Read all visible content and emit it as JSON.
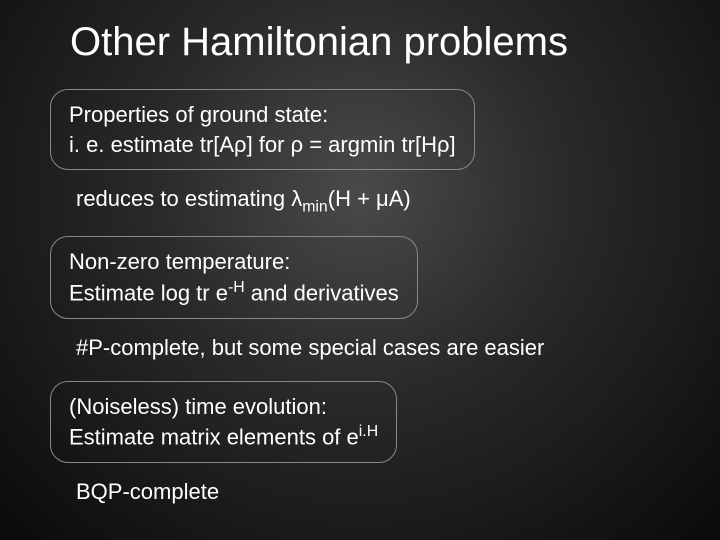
{
  "slide": {
    "title": "Other Hamiltonian problems",
    "background": {
      "gradient_center": "#4a4a4a",
      "gradient_mid": "#2a2a2a",
      "gradient_edge": "#0a0a0a"
    },
    "text_color": "#ffffff",
    "box_border_color": "#888888",
    "title_fontsize": 40,
    "body_fontsize": 22,
    "items": [
      {
        "type": "box",
        "lines": [
          {
            "parts": [
              "Properties of ground state:"
            ]
          },
          {
            "parts": [
              "i. e. estimate tr[Aρ] for ρ = argmin tr[Hρ]"
            ]
          }
        ]
      },
      {
        "type": "plain",
        "lines": [
          {
            "parts": [
              "reduces to estimating λ",
              {
                "sub": "min"
              },
              "(H + μA)"
            ]
          }
        ]
      },
      {
        "type": "box",
        "lines": [
          {
            "parts": [
              "Non-zero temperature:"
            ]
          },
          {
            "parts": [
              "Estimate log tr e",
              {
                "sup": "-H"
              },
              " and derivatives"
            ]
          }
        ]
      },
      {
        "type": "plain",
        "lines": [
          {
            "parts": [
              "#P-complete, but some special cases are easier"
            ]
          }
        ]
      },
      {
        "type": "box",
        "lines": [
          {
            "parts": [
              "(Noiseless) time evolution:"
            ]
          },
          {
            "parts": [
              "Estimate matrix elements of e",
              {
                "sup": "i.H"
              }
            ]
          }
        ]
      },
      {
        "type": "plain",
        "lines": [
          {
            "parts": [
              "BQP-complete"
            ]
          }
        ]
      }
    ]
  }
}
